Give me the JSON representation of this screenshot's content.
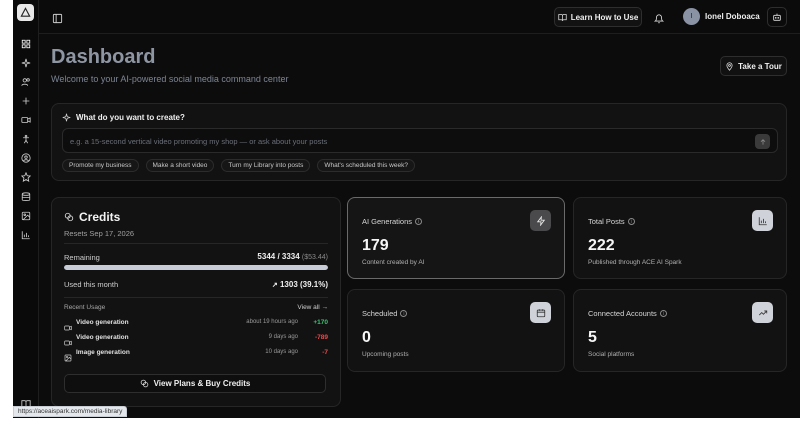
{
  "topbar": {
    "learn_label": "Learn How to Use",
    "user_initial": "I",
    "user_name": "Ionel Doboaca"
  },
  "sidebar": {
    "icons": [
      "dashboard-icon",
      "sparkle-icon",
      "users-icon",
      "plus-icon",
      "video-icon",
      "person-icon",
      "user-circle-icon",
      "star-icon",
      "database-icon",
      "image-icon",
      "chart-icon"
    ]
  },
  "header": {
    "title": "Dashboard",
    "subtitle": "Welcome to your AI-powered social media command center",
    "tour_label": "Take a Tour"
  },
  "create": {
    "title": "What do you want to create?",
    "placeholder": "e.g. a 15-second vertical video promoting my shop — or ask about your posts",
    "chips": [
      "Promote my business",
      "Make a short video",
      "Turn my Library into posts",
      "What's scheduled this week?"
    ]
  },
  "credits": {
    "title": "Credits",
    "resets": "Resets Sep 17, 2026",
    "remaining_label": "Remaining",
    "remaining_value": "5344 / 3334",
    "remaining_money": "($53.44)",
    "remaining_fraction": 1.0,
    "used_label": "Used this month",
    "used_value": "1303 (39.1%)",
    "recent_label": "Recent Usage",
    "view_all": "View all",
    "usage": [
      {
        "name": "Video generation",
        "when": "about 19 hours ago",
        "delta": "+170",
        "type": "pos",
        "icon": "video-icon"
      },
      {
        "name": "Video generation",
        "when": "9 days ago",
        "delta": "-789",
        "type": "neg",
        "icon": "video-icon"
      },
      {
        "name": "Image generation",
        "when": "10 days ago",
        "delta": "-7",
        "type": "neg",
        "icon": "image-icon"
      }
    ],
    "plans_button": "View Plans & Buy Credits"
  },
  "stats": {
    "ai_generations": {
      "label": "AI Generations",
      "value": "179",
      "desc": "Content created by AI"
    },
    "total_posts": {
      "label": "Total Posts",
      "value": "222",
      "desc": "Published through ACE AI Spark"
    },
    "scheduled": {
      "label": "Scheduled",
      "value": "0",
      "desc": "Upcoming posts"
    },
    "connected": {
      "label": "Connected Accounts",
      "value": "5",
      "desc": "Social platforms"
    }
  },
  "status_url": "https://aceaispark.com/media-library"
}
